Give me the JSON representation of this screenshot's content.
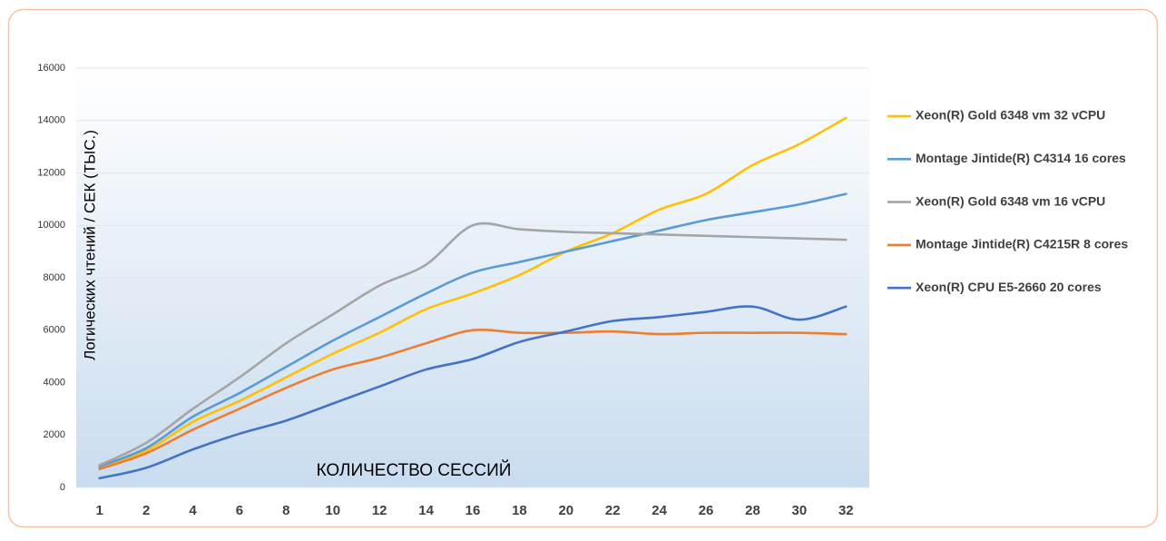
{
  "chart_data": {
    "type": "line",
    "y_label": "Логических чтений / СЕК (ТЫС.)",
    "x_label": "КОЛИЧЕСТВО СЕССИЙ",
    "categories": [
      "1",
      "2",
      "4",
      "6",
      "8",
      "10",
      "12",
      "14",
      "16",
      "18",
      "20",
      "22",
      "24",
      "26",
      "28",
      "30",
      "32"
    ],
    "ylim": [
      0,
      16000
    ],
    "yticks": [
      0,
      2000,
      4000,
      6000,
      8000,
      10000,
      12000,
      14000,
      16000
    ],
    "grid": true,
    "legend": "right",
    "series": [
      {
        "name": "Xeon(R) Gold 6348 vm 32 vCPU",
        "color": "#ffc000",
        "values": [
          750,
          1400,
          2500,
          3300,
          4200,
          5100,
          5900,
          6800,
          7400,
          8100,
          9000,
          9700,
          10600,
          11200,
          12300,
          13100,
          14100
        ]
      },
      {
        "name": "Montage Jintide(R) C4314 16 cores",
        "color": "#5b9bd5",
        "values": [
          800,
          1500,
          2700,
          3600,
          4600,
          5600,
          6500,
          7400,
          8200,
          8600,
          9000,
          9400,
          9800,
          10200,
          10500,
          10800,
          11200
        ]
      },
      {
        "name": "Xeon(R) Gold 6348 vm 16 vCPU",
        "color": "#a5a5a5",
        "values": [
          850,
          1700,
          3000,
          4200,
          5500,
          6600,
          7700,
          8500,
          10000,
          9850,
          9750,
          9700,
          9650,
          9600,
          9550,
          9500,
          9450
        ]
      },
      {
        "name": "Montage Jintide(R) C4215R 8 cores",
        "color": "#ed7d31",
        "values": [
          700,
          1300,
          2200,
          3000,
          3800,
          4500,
          4950,
          5500,
          6000,
          5900,
          5900,
          5950,
          5850,
          5900,
          5900,
          5900,
          5850
        ]
      },
      {
        "name": "Xeon(R) CPU E5-2660 20 cores",
        "color": "#4472c4",
        "values": [
          350,
          750,
          1450,
          2050,
          2550,
          3200,
          3850,
          4500,
          4900,
          5550,
          5950,
          6350,
          6500,
          6700,
          6900,
          6400,
          6900
        ]
      }
    ]
  }
}
